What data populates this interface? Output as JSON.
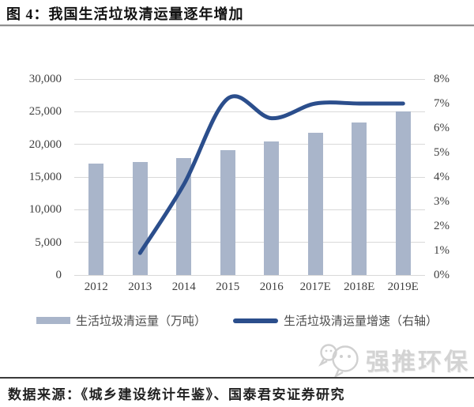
{
  "title": "图 4：我国生活垃圾清运量逐年增加",
  "watermark": {
    "icon": "wechat-logo",
    "text": "强推环保",
    "color": "#d0d0d0"
  },
  "footer": {
    "source": "数据来源：《城乡建设统计年鉴》、国泰君安证券研究"
  },
  "chart_data": {
    "type": "bar+line",
    "title": "我国生活垃圾清运量逐年增加",
    "categories": [
      "2012",
      "2013",
      "2014",
      "2015",
      "2016",
      "2017E",
      "2018E",
      "2019E"
    ],
    "series": [
      {
        "name": "生活垃圾清运量（万吨）",
        "type": "bar",
        "axis": "left",
        "color": "#a9b5ca",
        "values": [
          17000,
          17300,
          17900,
          19100,
          20400,
          21800,
          23400,
          25000
        ]
      },
      {
        "name": "生活垃圾清运量增速（右轴）",
        "type": "line",
        "axis": "right",
        "color": "#2b4e8c",
        "values": [
          null,
          0.9,
          3.7,
          7.2,
          6.4,
          7.0,
          7.0,
          7.0
        ]
      }
    ],
    "left_axis": {
      "min": 0,
      "max": 30000,
      "step": 5000,
      "ticks": [
        "0",
        "5,000",
        "10,000",
        "15,000",
        "20,000",
        "25,000",
        "30,000"
      ]
    },
    "right_axis": {
      "min": 0,
      "max": 8,
      "step": 1,
      "unit": "%",
      "ticks": [
        "0%",
        "1%",
        "2%",
        "3%",
        "4%",
        "5%",
        "6%",
        "7%",
        "8%"
      ]
    },
    "grid": true,
    "legend_position": "bottom"
  }
}
